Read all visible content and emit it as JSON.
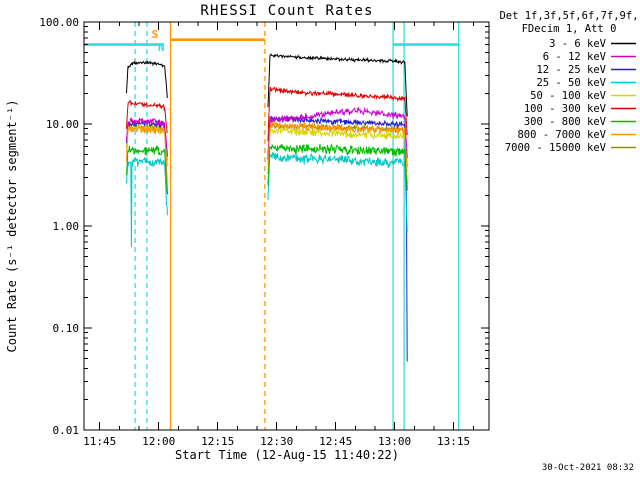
{
  "chart_data": {
    "type": "line",
    "title": "RHESSI Count Rates",
    "xlabel": "Start Time (12-Aug-15 11:40:22)",
    "ylabel": "Count Rate (s⁻¹ detector segment⁻¹)",
    "y_scale": "log",
    "x_unit": "minutes-since-midnight 12-Aug-15",
    "x_domain": [
      701,
      804
    ],
    "y_domain": [
      0.01,
      100
    ],
    "x_minor_step": 5,
    "x_ticks": [
      {
        "t": 705,
        "label": "11:45"
      },
      {
        "t": 720,
        "label": "12:00"
      },
      {
        "t": 735,
        "label": "12:15"
      },
      {
        "t": 750,
        "label": "12:30"
      },
      {
        "t": 765,
        "label": "12:45"
      },
      {
        "t": 780,
        "label": "13:00"
      },
      {
        "t": 795,
        "label": "13:15"
      }
    ],
    "y_ticks": [
      {
        "v": 0.01,
        "label": "0.01"
      },
      {
        "v": 0.1,
        "label": "0.10"
      },
      {
        "v": 1,
        "label": "1.00"
      },
      {
        "v": 10,
        "label": "10.00"
      },
      {
        "v": 100,
        "label": "100.00"
      }
    ],
    "series": [
      {
        "name": "3 - 6 keV",
        "color": "#000000",
        "noise": 0.02,
        "segments": [
          [
            [
              711.8,
              20
            ],
            [
              712.2,
              36
            ],
            [
              714,
              40
            ],
            [
              718,
              40
            ],
            [
              721.5,
              37
            ],
            [
              722.2,
              18
            ]
          ],
          [
            [
              747.8,
              15
            ],
            [
              748.3,
              47
            ],
            [
              753,
              46
            ],
            [
              760,
              44
            ],
            [
              768,
              43
            ],
            [
              775,
              42
            ],
            [
              781,
              41
            ],
            [
              782.6,
              40
            ],
            [
              783.2,
              12
            ]
          ]
        ]
      },
      {
        "name": "6 - 12 keV",
        "color": "#cc00cc",
        "noise": 0.04,
        "segments": [
          [
            [
              711.8,
              7
            ],
            [
              712.2,
              10.5
            ],
            [
              717,
              10.8
            ],
            [
              721.5,
              10.2
            ],
            [
              722.2,
              5
            ]
          ],
          [
            [
              747.8,
              5
            ],
            [
              748.3,
              11
            ],
            [
              756,
              11.5
            ],
            [
              764,
              13
            ],
            [
              770,
              13.5
            ],
            [
              776,
              12.8
            ],
            [
              782.6,
              11.8
            ],
            [
              783.2,
              5
            ]
          ]
        ]
      },
      {
        "name": "12 - 25 keV",
        "color": "#2222cc",
        "noise": 0.035,
        "segments": [
          [
            [
              711.8,
              6.5
            ],
            [
              712.2,
              10
            ],
            [
              717,
              10.2
            ],
            [
              721.5,
              9.8
            ],
            [
              722.2,
              2
            ]
          ],
          [
            [
              747.8,
              4.5
            ],
            [
              748.3,
              11.2
            ],
            [
              757,
              11
            ],
            [
              768,
              10.4
            ],
            [
              778,
              10
            ],
            [
              782.6,
              9.8
            ],
            [
              783,
              2
            ],
            [
              783.2,
              0.045
            ]
          ]
        ]
      },
      {
        "name": "25 - 50 keV",
        "color": "#00c8c8",
        "noise": 0.055,
        "segments": [
          [
            [
              711.8,
              2.8
            ],
            [
              712.2,
              4.3
            ],
            [
              712.9,
              4.2
            ],
            [
              713.05,
              0.62
            ],
            [
              713.2,
              4.2
            ],
            [
              717,
              4.3
            ],
            [
              721.5,
              4.1
            ],
            [
              722.2,
              1.3
            ]
          ],
          [
            [
              747.8,
              1.8
            ],
            [
              748.3,
              4.8
            ],
            [
              757,
              4.6
            ],
            [
              768,
              4.4
            ],
            [
              778,
              4.2
            ],
            [
              782.6,
              4.1
            ],
            [
              783.2,
              0.9
            ]
          ]
        ]
      },
      {
        "name": "50 - 100 keV",
        "color": "#d6d600",
        "noise": 0.045,
        "segments": [
          [
            [
              711.8,
              5.5
            ],
            [
              712.2,
              9.2
            ],
            [
              717,
              9
            ],
            [
              721.5,
              8.6
            ],
            [
              722.2,
              4
            ]
          ],
          [
            [
              747.8,
              4
            ],
            [
              748.3,
              8.8
            ],
            [
              757,
              8.4
            ],
            [
              768,
              8
            ],
            [
              778,
              7.7
            ],
            [
              782.6,
              7.5
            ],
            [
              783.2,
              3.5
            ]
          ]
        ]
      },
      {
        "name": "100 - 300 keV",
        "color": "#dd0000",
        "noise": 0.03,
        "segments": [
          [
            [
              711.8,
              9
            ],
            [
              712.2,
              16
            ],
            [
              716,
              15.5
            ],
            [
              721.5,
              14.5
            ],
            [
              722.2,
              8
            ]
          ],
          [
            [
              747.8,
              7
            ],
            [
              748.3,
              22
            ],
            [
              755,
              20.5
            ],
            [
              765,
              19.5
            ],
            [
              775,
              18.5
            ],
            [
              782.6,
              18
            ],
            [
              783.2,
              8
            ]
          ]
        ]
      },
      {
        "name": "300 - 800 keV",
        "color": "#00bb00",
        "noise": 0.055,
        "segments": [
          [
            [
              711.8,
              3.2
            ],
            [
              712.2,
              5.5
            ],
            [
              717,
              5.5
            ],
            [
              721.5,
              5.3
            ],
            [
              722.2,
              2
            ]
          ],
          [
            [
              747.8,
              2.6
            ],
            [
              748.3,
              5.9
            ],
            [
              757,
              5.7
            ],
            [
              768,
              5.6
            ],
            [
              778,
              5.4
            ],
            [
              782.6,
              5.3
            ],
            [
              783.2,
              2.2
            ]
          ]
        ]
      },
      {
        "name": "800 - 7000 keV",
        "color": "#ff9500",
        "noise": 0.05,
        "segments": [
          [
            [
              711.8,
              4.5
            ],
            [
              712.2,
              8.8
            ],
            [
              717,
              8.9
            ],
            [
              721.5,
              8.5
            ],
            [
              722.2,
              2.4
            ]
          ],
          [
            [
              747.8,
              3.5
            ],
            [
              748.3,
              9.8
            ],
            [
              757,
              9.4
            ],
            [
              768,
              9
            ],
            [
              778,
              8.7
            ],
            [
              782.6,
              8.5
            ],
            [
              783.2,
              2.8
            ]
          ]
        ]
      },
      {
        "name": "7000 - 15000 keV",
        "color": "#8f8f00",
        "noise": 0.035,
        "segments": [
          [
            [
              711.8,
              5.8
            ],
            [
              712.2,
              9.4
            ],
            [
              717,
              9.3
            ],
            [
              721.5,
              9
            ],
            [
              722.2,
              4.5
            ]
          ],
          [
            [
              747.8,
              4.2
            ],
            [
              748.3,
              9.6
            ],
            [
              757,
              9.4
            ],
            [
              768,
              9.1
            ],
            [
              778,
              8.9
            ],
            [
              782.6,
              8.8
            ],
            [
              783.2,
              3.8
            ]
          ]
        ]
      }
    ],
    "draw_order": [
      "7000 - 15000 keV",
      "50 - 100 keV",
      "12 - 25 keV",
      "6 - 12 keV",
      "800 - 7000 keV",
      "25 - 50 keV",
      "300 - 800 keV",
      "100 - 300 keV",
      "3 - 6 keV"
    ],
    "flags": {
      "bars": [
        {
          "name": "night-flag-bar-left",
          "color": "#2edede",
          "v": 60,
          "t0": 701,
          "t1": 721.3
        },
        {
          "name": "saa-flag-bar",
          "color": "#ff9500",
          "v": 67,
          "t0": 723.2,
          "t1": 747
        },
        {
          "name": "night-flag-bar-right",
          "color": "#2edede",
          "v": 60,
          "t0": 779.6,
          "t1": 796.3
        }
      ],
      "vlines": [
        {
          "color": "#2edede",
          "t": 714,
          "style": "dashed"
        },
        {
          "color": "#2edede",
          "t": 717,
          "style": "dashed"
        },
        {
          "color": "#ff9500",
          "t": 723,
          "style": "solid"
        },
        {
          "color": "#ff9500",
          "t": 747,
          "style": "dashed"
        },
        {
          "color": "#2edede",
          "t": 779.6,
          "style": "solid"
        },
        {
          "color": "#2edede",
          "t": 782.4,
          "style": "solid"
        },
        {
          "color": "#2edede",
          "t": 796.3,
          "style": "solid"
        }
      ],
      "labels": [
        {
          "text": "S",
          "color": "#ff9500",
          "t": 718.2,
          "v": 70
        },
        {
          "text": "N",
          "color": "#2edede",
          "t": 719.8,
          "v": 52
        }
      ]
    }
  },
  "legend": {
    "header1": "Det 1f,3f,5f,6f,7f,9f,",
    "header2": "FDecim 1, Att 0"
  },
  "footer": {
    "timestamp": "30-Oct-2021 08:32"
  }
}
